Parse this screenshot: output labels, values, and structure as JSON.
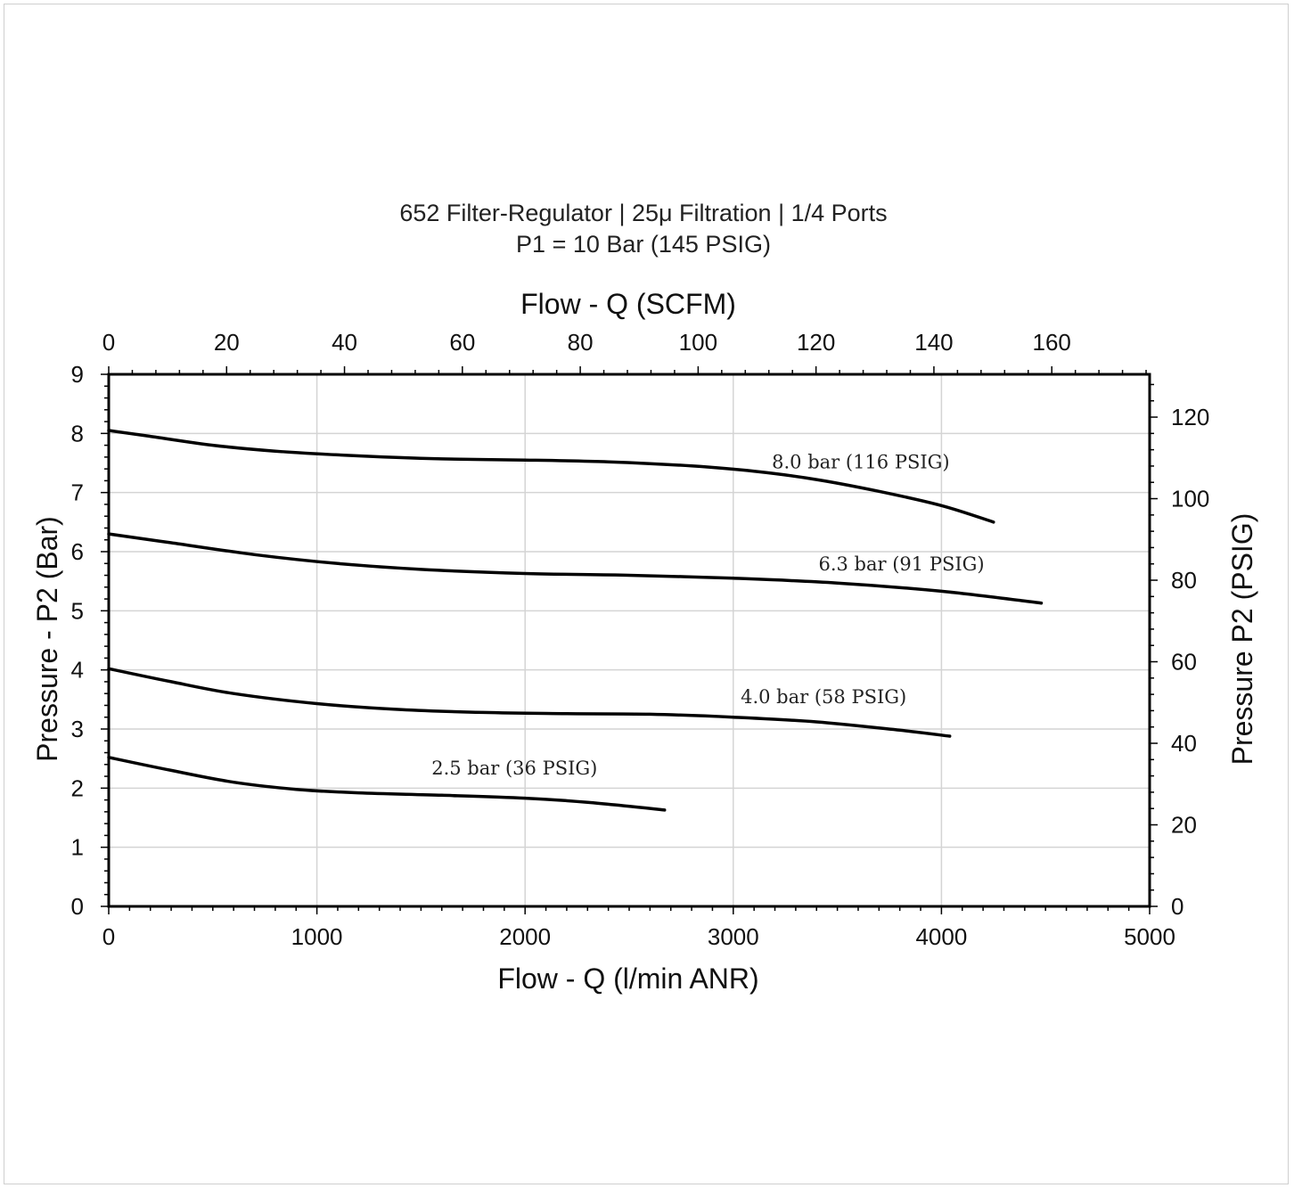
{
  "chart_data": {
    "type": "line",
    "title": "652 Filter-Regulator | 25μ Filtration | 1/4 Ports",
    "subtitle": "P1 = 10 Bar (145 PSIG)",
    "xlabel": "Flow - Q (l/min ANR)",
    "x2label": "Flow - Q (SCFM)",
    "ylabel": "Pressure - P2 (Bar)",
    "y2label": "Pressure P2 (PSIG)",
    "xlim": [
      0,
      5000
    ],
    "ylim": [
      0,
      9
    ],
    "x2lim": [
      0,
      176.6
    ],
    "y2lim": [
      0,
      130.5
    ],
    "xticks": [
      "0",
      "1000",
      "2000",
      "3000",
      "4000",
      "5000"
    ],
    "yticks": [
      "0",
      "1",
      "2",
      "3",
      "4",
      "5",
      "6",
      "7",
      "8",
      "9"
    ],
    "x2ticks": [
      "0",
      "20",
      "40",
      "60",
      "80",
      "100",
      "120",
      "140",
      "160"
    ],
    "y2ticks": [
      "0",
      "20",
      "40",
      "60",
      "80",
      "100",
      "120"
    ],
    "grid": true,
    "series": [
      {
        "name": "8.0 bar (116 PSIG)",
        "x": [
          0,
          200,
          500,
          800,
          1200,
          1600,
          2000,
          2400,
          2800,
          3100,
          3400,
          3700,
          4000,
          4250
        ],
        "y": [
          8.05,
          7.95,
          7.8,
          7.7,
          7.62,
          7.57,
          7.55,
          7.52,
          7.45,
          7.36,
          7.22,
          7.02,
          6.78,
          6.5
        ]
      },
      {
        "name": "6.3 bar (91 PSIG)",
        "x": [
          0,
          300,
          700,
          1100,
          1500,
          2000,
          2500,
          3000,
          3500,
          4000,
          4480
        ],
        "y": [
          6.3,
          6.15,
          5.95,
          5.8,
          5.7,
          5.63,
          5.6,
          5.55,
          5.47,
          5.33,
          5.13
        ]
      },
      {
        "name": "4.0 bar (58 PSIG)",
        "x": [
          0,
          300,
          600,
          1000,
          1400,
          1800,
          2200,
          2600,
          3000,
          3400,
          3800,
          4040
        ],
        "y": [
          4.02,
          3.8,
          3.6,
          3.43,
          3.33,
          3.28,
          3.26,
          3.25,
          3.2,
          3.12,
          2.98,
          2.88
        ]
      },
      {
        "name": "2.5 bar (36 PSIG)",
        "x": [
          0,
          300,
          600,
          900,
          1200,
          1600,
          2000,
          2300,
          2670
        ],
        "y": [
          2.52,
          2.3,
          2.1,
          1.98,
          1.92,
          1.88,
          1.83,
          1.76,
          1.63
        ]
      }
    ]
  }
}
